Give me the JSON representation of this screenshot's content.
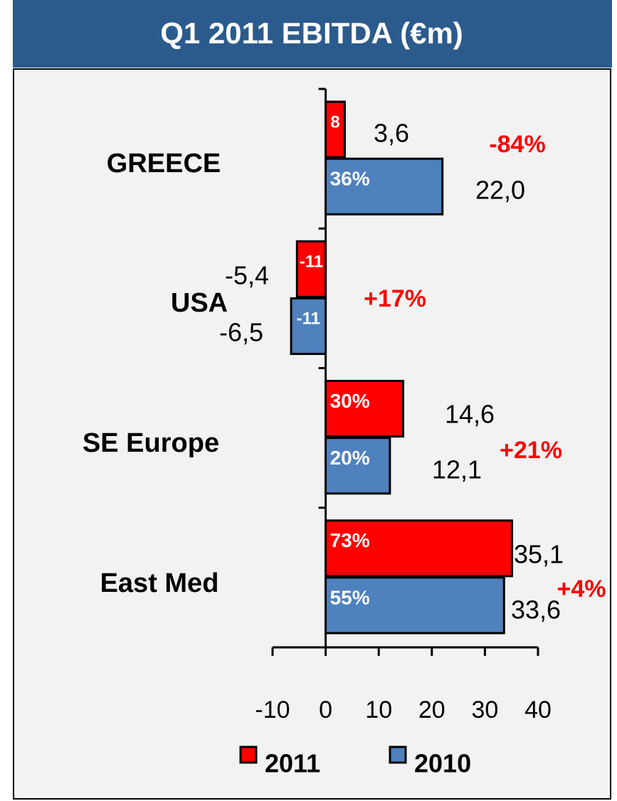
{
  "chart_data": {
    "type": "barh",
    "title": "Q1 2011 EBITDA (€m)",
    "categories": [
      "GREECE",
      "USA",
      "SE Europe",
      "East Med"
    ],
    "series": [
      {
        "name": "2011",
        "color": "#ff0000",
        "values": [
          3.6,
          -5.4,
          14.6,
          35.1
        ],
        "value_labels": [
          "3,6",
          "-5,4",
          "14,6",
          "35,1"
        ],
        "inner_labels": [
          "8",
          "-11",
          "30%",
          "73%"
        ]
      },
      {
        "name": "2010",
        "color": "#4f81bd",
        "values": [
          22.0,
          -6.5,
          12.1,
          33.6
        ],
        "value_labels": [
          "22,0",
          "-6,5",
          "12,1",
          "33,6"
        ],
        "inner_labels": [
          "36%",
          "-11",
          "20%",
          "55%"
        ]
      }
    ],
    "annotations": [
      "-84%",
      "+17%",
      "+21%",
      "+4%"
    ],
    "xlim": [
      -10,
      40
    ],
    "xticks": [
      -10,
      0,
      10,
      20,
      30,
      40
    ],
    "legend": "bottom"
  }
}
